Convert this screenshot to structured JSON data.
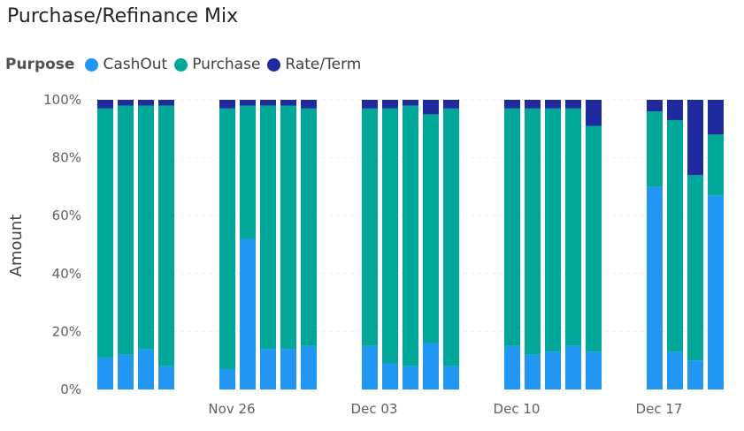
{
  "chart_data": {
    "type": "bar",
    "stacked": "percent",
    "title": "Purchase/Refinance Mix",
    "ylabel": "Amount",
    "xlabel": "",
    "ylim": [
      0,
      100
    ],
    "y_ticks": [
      "0%",
      "20%",
      "40%",
      "60%",
      "80%",
      "100%"
    ],
    "x_tick_labels": [
      "Nov 26",
      "Dec 03",
      "Dec 10",
      "Dec 17"
    ],
    "legend_title": "Purpose",
    "legend_position": "top-left",
    "grid": "dotted horizontal",
    "categories": [
      "Nov 20",
      "Nov 21",
      "Nov 22",
      "Nov 23",
      "Nov 26",
      "Nov 27",
      "Nov 28",
      "Nov 29",
      "Nov 30",
      "Dec 03",
      "Dec 04",
      "Dec 05",
      "Dec 06",
      "Dec 07",
      "Dec 10",
      "Dec 11",
      "Dec 12",
      "Dec 13",
      "Dec 14",
      "Dec 17",
      "Dec 18",
      "Dec 19",
      "Dec 20"
    ],
    "series": [
      {
        "name": "CashOut",
        "color": "#2196F3",
        "values": [
          11,
          12,
          14,
          8,
          7,
          52,
          14,
          14,
          15,
          15,
          9,
          8,
          16,
          8,
          15,
          12,
          13,
          15,
          13,
          70,
          13,
          10,
          67
        ]
      },
      {
        "name": "Purchase",
        "color": "#01A89A",
        "values": [
          86,
          86,
          84,
          90,
          90,
          46,
          84,
          84,
          82,
          82,
          88,
          90,
          79,
          89,
          82,
          85,
          84,
          82,
          78,
          26,
          80,
          64,
          21
        ]
      },
      {
        "name": "Rate/Term",
        "color": "#1F2A9C",
        "values": [
          3,
          2,
          2,
          2,
          3,
          2,
          2,
          2,
          3,
          3,
          3,
          2,
          5,
          3,
          3,
          3,
          3,
          3,
          9,
          4,
          7,
          26,
          12
        ]
      }
    ]
  }
}
